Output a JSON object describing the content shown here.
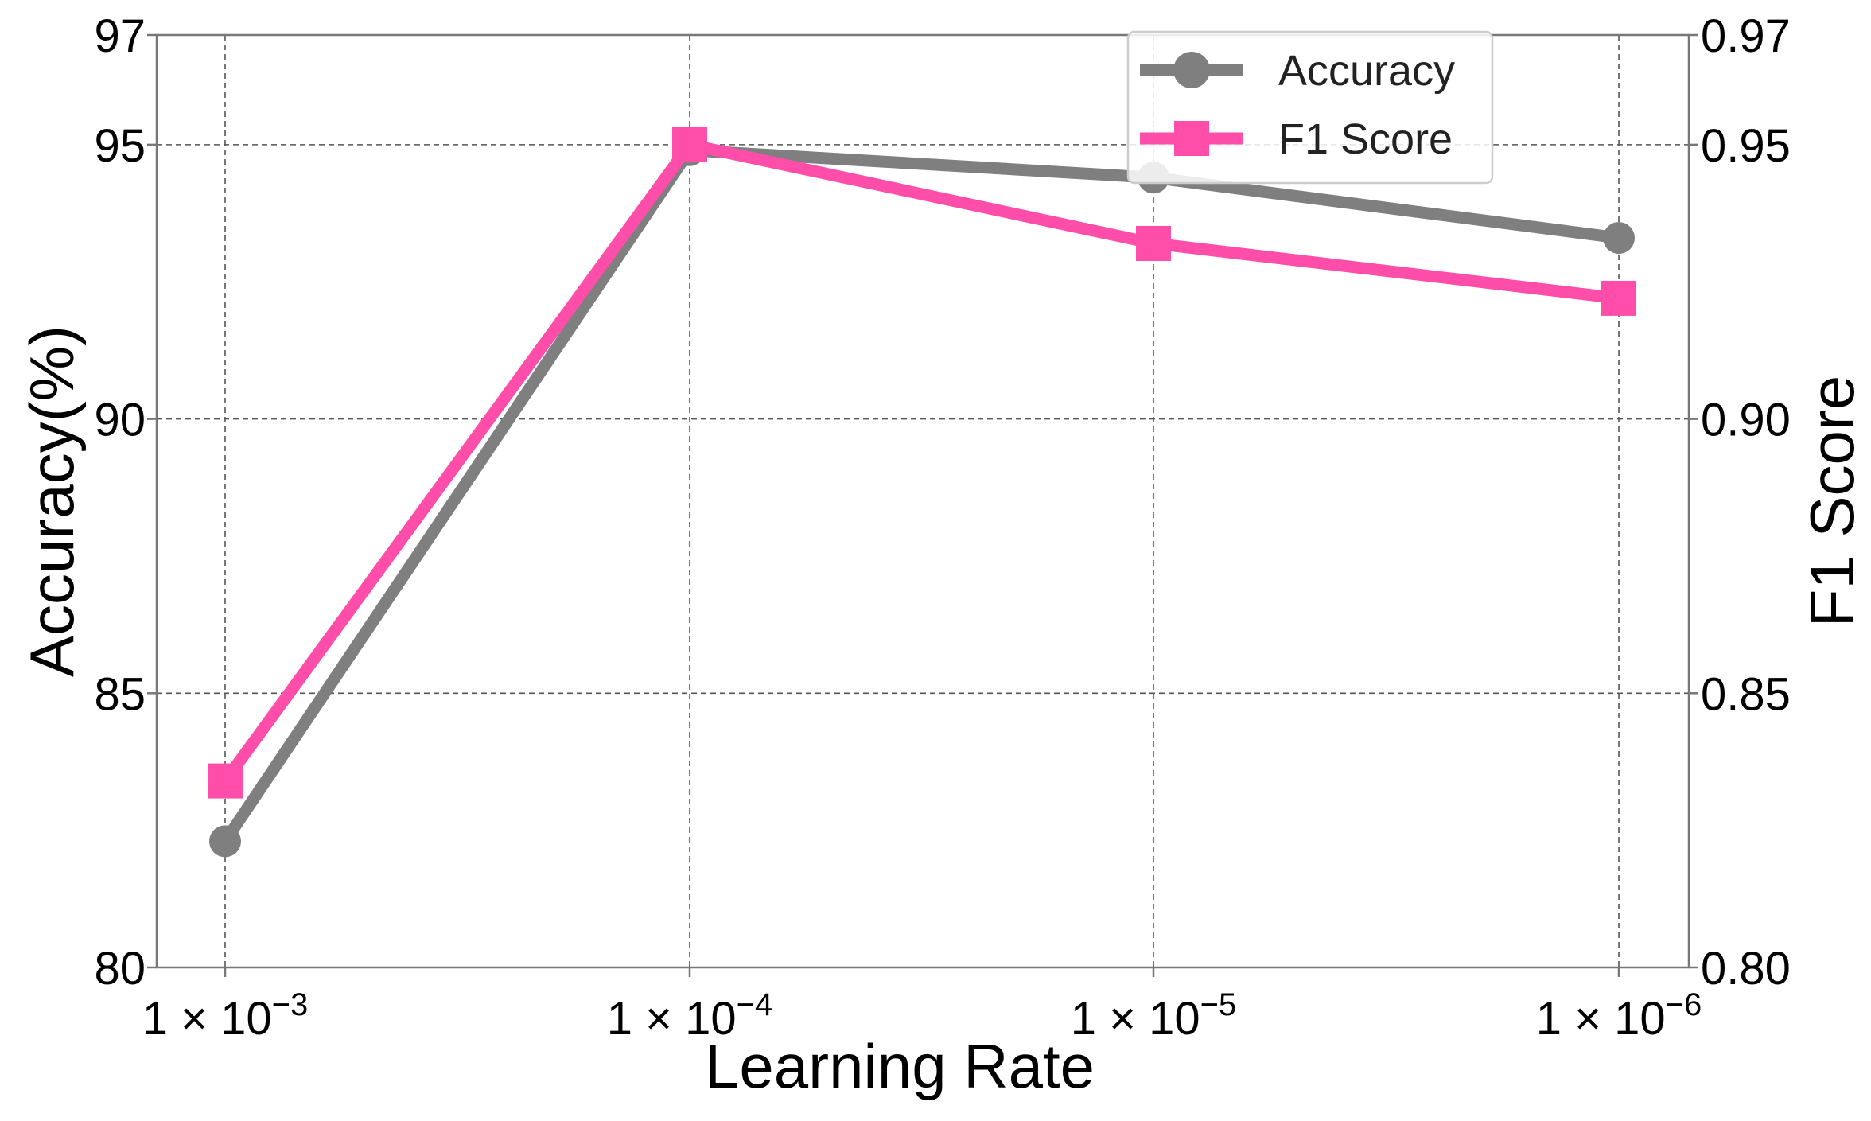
{
  "chart_data": {
    "type": "line",
    "xlabel": "Learning Rate",
    "ylabel_left": "Accuracy(%)",
    "ylabel_right": "F1 Score",
    "categories": [
      {
        "base": "1 × 10",
        "exp": "−3"
      },
      {
        "base": "1 × 10",
        "exp": "−4"
      },
      {
        "base": "1 × 10",
        "exp": "−5"
      },
      {
        "base": "1 × 10",
        "exp": "−6"
      }
    ],
    "ylim_left": [
      80,
      97
    ],
    "ylim_right": [
      0.8,
      0.97
    ],
    "yticks_left": [
      "80",
      "85",
      "90",
      "95",
      "97"
    ],
    "yticks_right": [
      "0.80",
      "0.85",
      "0.90",
      "0.95",
      "0.97"
    ],
    "grid": true,
    "legend_position": "top-right",
    "series": [
      {
        "name": "Accuracy",
        "axis": "left",
        "marker": "circle",
        "color": "#7f7f7f",
        "values": [
          82.3,
          94.9,
          94.4,
          93.3
        ]
      },
      {
        "name": "F1 Score",
        "axis": "right",
        "marker": "square",
        "color": "#ff4daa",
        "values": [
          0.834,
          0.95,
          0.932,
          0.922
        ]
      }
    ]
  }
}
